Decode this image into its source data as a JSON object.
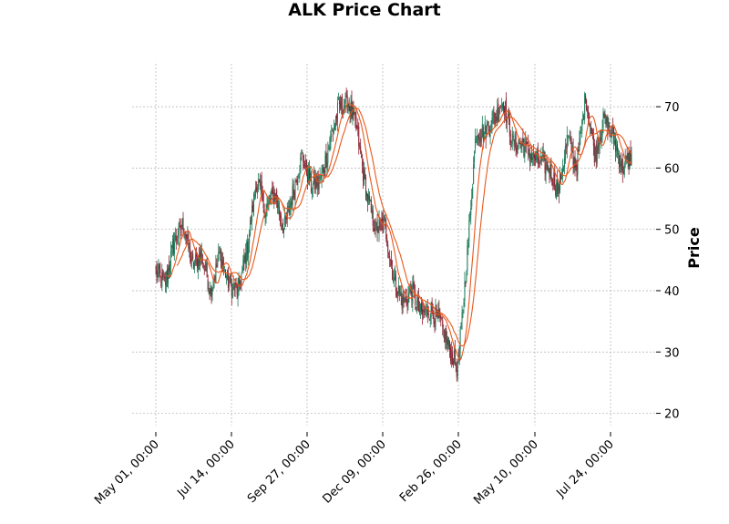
{
  "chart_data": {
    "type": "candlestick",
    "title": "ALK Price Chart",
    "xlabel": "",
    "ylabel": "Price",
    "ylim": [
      18,
      77
    ],
    "y_ticks": [
      20,
      30,
      40,
      50,
      60,
      70
    ],
    "x_tick_labels": [
      "May 01, 00:00",
      "Jul 14, 00:00",
      "Sep 27, 00:00",
      "Dec 09, 00:00",
      "Feb 26, 00:00",
      "May 10, 00:00",
      "Jul 24, 00:00"
    ],
    "grid": true,
    "grid_style": "dashed",
    "y_axis_position": "right",
    "up_color": "#1e7b5a",
    "down_color": "#8b1f2f",
    "moving_average_color": "#e8581c",
    "moving_average_count": 2,
    "price_path": [
      {
        "label": "May 01, 00:00",
        "close": 43
      },
      {
        "label": "",
        "close": 41
      },
      {
        "label": "",
        "close": 48
      },
      {
        "label": "",
        "close": 51
      },
      {
        "label": "",
        "close": 44
      },
      {
        "label": "",
        "close": 46
      },
      {
        "label": "",
        "close": 40
      },
      {
        "label": "",
        "close": 46
      },
      {
        "label": "",
        "close": 41
      },
      {
        "label": "Jul 14, 00:00",
        "close": 40
      },
      {
        "label": "",
        "close": 47
      },
      {
        "label": "",
        "close": 58
      },
      {
        "label": "",
        "close": 53
      },
      {
        "label": "",
        "close": 56
      },
      {
        "label": "",
        "close": 50
      },
      {
        "label": "",
        "close": 56
      },
      {
        "label": "",
        "close": 62
      },
      {
        "label": "Sep 27, 00:00",
        "close": 57
      },
      {
        "label": "",
        "close": 58
      },
      {
        "label": "",
        "close": 64
      },
      {
        "label": "",
        "close": 70
      },
      {
        "label": "",
        "close": 71
      },
      {
        "label": "",
        "close": 66
      },
      {
        "label": "",
        "close": 56
      },
      {
        "label": "",
        "close": 50
      },
      {
        "label": "Dec 09, 00:00",
        "close": 51
      },
      {
        "label": "",
        "close": 42
      },
      {
        "label": "",
        "close": 38
      },
      {
        "label": "",
        "close": 40
      },
      {
        "label": "",
        "close": 36
      },
      {
        "label": "",
        "close": 37
      },
      {
        "label": "",
        "close": 35
      },
      {
        "label": "",
        "close": 31
      },
      {
        "label": "",
        "close": 27
      },
      {
        "label": "Feb 26, 00:00",
        "close": 45
      },
      {
        "label": "",
        "close": 66
      },
      {
        "label": "",
        "close": 66
      },
      {
        "label": "",
        "close": 68
      },
      {
        "label": "",
        "close": 71
      },
      {
        "label": "",
        "close": 64
      },
      {
        "label": "",
        "close": 64
      },
      {
        "label": "",
        "close": 62
      },
      {
        "label": "",
        "close": 61
      },
      {
        "label": "May 10, 00:00",
        "close": 60
      },
      {
        "label": "",
        "close": 56
      },
      {
        "label": "",
        "close": 65
      },
      {
        "label": "",
        "close": 60
      },
      {
        "label": "",
        "close": 72
      },
      {
        "label": "",
        "close": 62
      },
      {
        "label": "",
        "close": 68
      },
      {
        "label": "",
        "close": 65
      },
      {
        "label": "Jul 24, 00:00",
        "close": 60
      },
      {
        "label": "",
        "close": 62
      }
    ]
  }
}
